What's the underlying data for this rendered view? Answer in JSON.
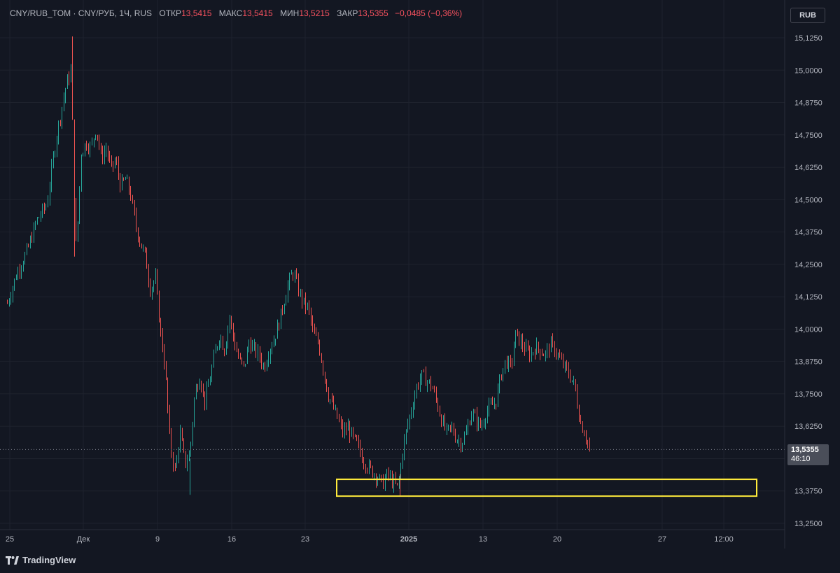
{
  "header": {
    "symbol": "CNY/RUB_TOM · CNY/РУБ, 1Ч, RUS",
    "open_label": "ОТКР",
    "open_value": "13,5415",
    "high_label": "МАКС",
    "high_value": "13,5415",
    "low_label": "МИН",
    "low_value": "13,5215",
    "close_label": "ЗАКР",
    "close_value": "13,5355",
    "change": "−0,0485 (−0,36%)"
  },
  "currency_button": "RUB",
  "price_tag": {
    "price": "13,5355",
    "countdown": "46:10"
  },
  "logo_text": "TradingView",
  "colors": {
    "background": "#131722",
    "up": "#26a69a",
    "down": "#ef5350",
    "highlight": "#ffeb3b",
    "grid": "#1f2430"
  },
  "chart_data": {
    "type": "candlestick",
    "ylim": [
      13.25,
      15.1875
    ],
    "y_ticks": [
      "15,1250",
      "15,0000",
      "14,8750",
      "14,7500",
      "14,6250",
      "14,5000",
      "14,3750",
      "14,2500",
      "14,1250",
      "14,0000",
      "13,8750",
      "13,7500",
      "13,6250",
      "13,5000",
      "13,3750",
      "13,2500"
    ],
    "x_ticks": [
      "25",
      "Дек",
      "9",
      "16",
      "23",
      "2025",
      "13",
      "20",
      "27",
      "12:00"
    ],
    "last_price": 13.5355,
    "highlight_zone": {
      "x_start": "2024-12-26",
      "x_end": "2025-01-31",
      "y_low": 13.355,
      "y_high": 13.42
    },
    "path_points": [
      [
        0,
        14.1
      ],
      [
        2,
        14.22
      ],
      [
        4,
        14.3
      ],
      [
        6,
        14.42
      ],
      [
        8,
        14.48
      ],
      [
        9,
        14.62
      ],
      [
        10,
        14.75
      ],
      [
        11,
        14.85
      ],
      [
        12,
        14.95
      ],
      [
        13,
        15.0
      ],
      [
        13.5,
        14.55
      ],
      [
        14,
        14.3
      ],
      [
        15,
        14.68
      ],
      [
        16,
        14.72
      ],
      [
        17,
        14.7
      ],
      [
        18,
        14.78
      ],
      [
        19,
        14.66
      ],
      [
        20,
        14.7
      ],
      [
        21,
        14.62
      ],
      [
        22,
        14.65
      ],
      [
        23,
        14.55
      ],
      [
        24,
        14.58
      ],
      [
        25,
        14.52
      ],
      [
        26,
        14.4
      ],
      [
        27,
        14.33
      ],
      [
        28,
        14.28
      ],
      [
        29,
        14.15
      ],
      [
        30,
        14.2
      ],
      [
        31,
        14.0
      ],
      [
        32,
        13.85
      ],
      [
        33,
        13.55
      ],
      [
        34,
        13.45
      ],
      [
        35,
        13.6
      ],
      [
        36,
        13.48
      ],
      [
        37,
        13.52
      ],
      [
        38,
        13.75
      ],
      [
        39,
        13.82
      ],
      [
        40,
        13.72
      ],
      [
        41,
        13.8
      ],
      [
        42,
        13.9
      ],
      [
        43,
        13.98
      ],
      [
        44,
        13.92
      ],
      [
        45,
        14.05
      ],
      [
        46,
        13.95
      ],
      [
        47,
        13.88
      ],
      [
        48,
        13.85
      ],
      [
        49,
        13.95
      ],
      [
        50,
        13.92
      ],
      [
        51,
        13.9
      ],
      [
        52,
        13.85
      ],
      [
        53,
        13.92
      ],
      [
        54,
        13.96
      ],
      [
        55,
        14.02
      ],
      [
        56,
        14.1
      ],
      [
        57,
        14.18
      ],
      [
        58,
        14.22
      ],
      [
        59,
        14.15
      ],
      [
        60,
        14.1
      ],
      [
        61,
        14.08
      ],
      [
        62,
        13.98
      ],
      [
        63,
        13.95
      ],
      [
        64,
        13.85
      ],
      [
        65,
        13.75
      ],
      [
        66,
        13.7
      ],
      [
        67,
        13.65
      ],
      [
        68,
        13.6
      ],
      [
        69,
        13.62
      ],
      [
        70,
        13.58
      ],
      [
        71,
        13.55
      ],
      [
        72,
        13.5
      ],
      [
        73,
        13.47
      ],
      [
        74,
        13.45
      ],
      [
        75,
        13.43
      ],
      [
        76,
        13.4
      ],
      [
        77,
        13.44
      ],
      [
        78,
        13.41
      ],
      [
        79,
        13.39
      ],
      [
        79.5,
        13.43
      ],
      [
        80,
        13.52
      ],
      [
        81,
        13.62
      ],
      [
        82,
        13.7
      ],
      [
        83,
        13.78
      ],
      [
        84,
        13.82
      ],
      [
        85,
        13.8
      ],
      [
        86,
        13.78
      ],
      [
        87,
        13.72
      ],
      [
        88,
        13.65
      ],
      [
        89,
        13.6
      ],
      [
        90,
        13.62
      ],
      [
        91,
        13.58
      ],
      [
        92,
        13.56
      ],
      [
        93,
        13.6
      ],
      [
        94,
        13.68
      ],
      [
        95,
        13.65
      ],
      [
        96,
        13.62
      ],
      [
        97,
        13.68
      ],
      [
        98,
        13.7
      ],
      [
        99,
        13.72
      ],
      [
        100,
        13.82
      ],
      [
        101,
        13.88
      ],
      [
        102,
        13.85
      ],
      [
        103,
        13.98
      ],
      [
        104,
        13.95
      ],
      [
        105,
        13.92
      ],
      [
        106,
        13.9
      ],
      [
        107,
        13.93
      ],
      [
        108,
        13.92
      ],
      [
        109,
        13.9
      ],
      [
        110,
        13.94
      ],
      [
        111,
        13.92
      ],
      [
        112,
        13.88
      ],
      [
        113,
        13.85
      ],
      [
        114,
        13.82
      ],
      [
        115,
        13.78
      ],
      [
        116,
        13.65
      ],
      [
        117,
        13.6
      ],
      [
        118,
        13.54
      ]
    ]
  }
}
